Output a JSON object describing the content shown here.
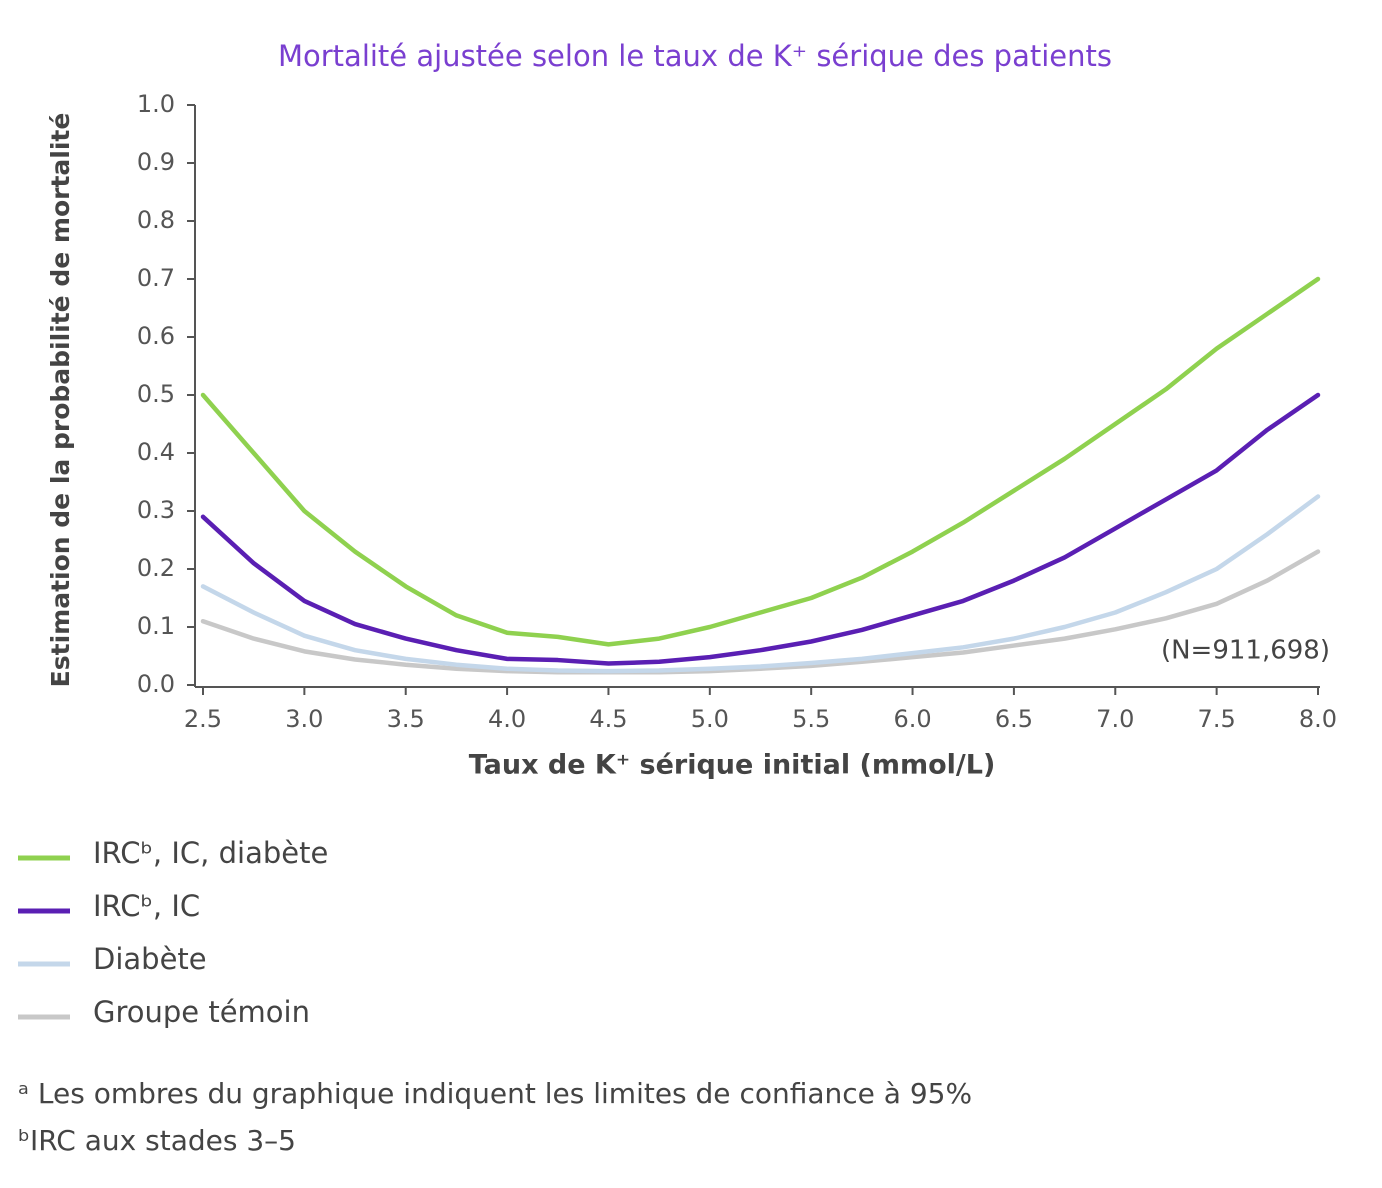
{
  "chart_data": {
    "type": "line",
    "title": "Mortalité ajustée selon le taux de K⁺ sérique des patients",
    "x_label": "Taux de K⁺ sérique initial (mmol/L)",
    "y_label": "Estimation de la probabilité de mortalité",
    "annotation": "(N=911,698)",
    "x": [
      2.5,
      2.75,
      3.0,
      3.25,
      3.5,
      3.75,
      4.0,
      4.25,
      4.5,
      4.75,
      5.0,
      5.25,
      5.5,
      5.75,
      6.0,
      6.25,
      6.5,
      6.75,
      7.0,
      7.25,
      7.5,
      7.75,
      8.0
    ],
    "xlim": [
      2.5,
      8.0
    ],
    "xticks": [
      2.5,
      {
        "value": 3,
        "label": "3.0"
      },
      3.5,
      {
        "value": 4,
        "label": "4.0"
      },
      4.5,
      {
        "value": 5,
        "label": "5.0"
      },
      5.5,
      {
        "value": 6,
        "label": "6.0"
      },
      6.5,
      {
        "value": 7,
        "label": "7.0"
      },
      7.5,
      {
        "value": 8,
        "label": "8.0"
      }
    ],
    "ylim": [
      0,
      1
    ],
    "yticks": [
      {
        "value": 0,
        "label": "0.0"
      },
      0.1,
      0.2,
      0.3,
      0.4,
      0.5,
      0.6,
      0.7,
      0.8,
      0.9,
      {
        "value": 1,
        "label": "1.0"
      }
    ],
    "series": [
      {
        "name": "IRCᵇ, IC, diabète",
        "color": "#8fd14f",
        "values": [
          0.5,
          0.4,
          0.3,
          0.23,
          0.17,
          0.12,
          0.09,
          0.083,
          0.07,
          0.08,
          0.1,
          0.125,
          0.15,
          0.185,
          0.23,
          0.28,
          0.335,
          0.39,
          0.45,
          0.51,
          0.58,
          0.64,
          0.7
        ]
      },
      {
        "name": "IRCᵇ, IC",
        "color": "#5a1fb3",
        "values": [
          0.29,
          0.21,
          0.145,
          0.105,
          0.08,
          0.06,
          0.045,
          0.043,
          0.037,
          0.04,
          0.048,
          0.06,
          0.075,
          0.095,
          0.12,
          0.145,
          0.18,
          0.22,
          0.27,
          0.32,
          0.37,
          0.44,
          0.5
        ]
      },
      {
        "name": "Diabète",
        "color": "#c4d7ea",
        "values": [
          0.17,
          0.125,
          0.085,
          0.06,
          0.045,
          0.035,
          0.028,
          0.025,
          0.024,
          0.025,
          0.028,
          0.032,
          0.038,
          0.045,
          0.055,
          0.065,
          0.08,
          0.1,
          0.125,
          0.16,
          0.2,
          0.26,
          0.325
        ]
      },
      {
        "name": "Groupe témoin",
        "color": "#c8c8c8",
        "values": [
          0.11,
          0.08,
          0.058,
          0.044,
          0.035,
          0.028,
          0.024,
          0.022,
          0.022,
          0.022,
          0.024,
          0.028,
          0.033,
          0.04,
          0.048,
          0.056,
          0.068,
          0.08,
          0.096,
          0.115,
          0.14,
          0.18,
          0.23
        ]
      }
    ],
    "footnotes": [
      "ᵃ Les ombres du graphique indiquent les limites de confiance à 95%",
      "ᵇIRC aux stades 3–5"
    ]
  }
}
